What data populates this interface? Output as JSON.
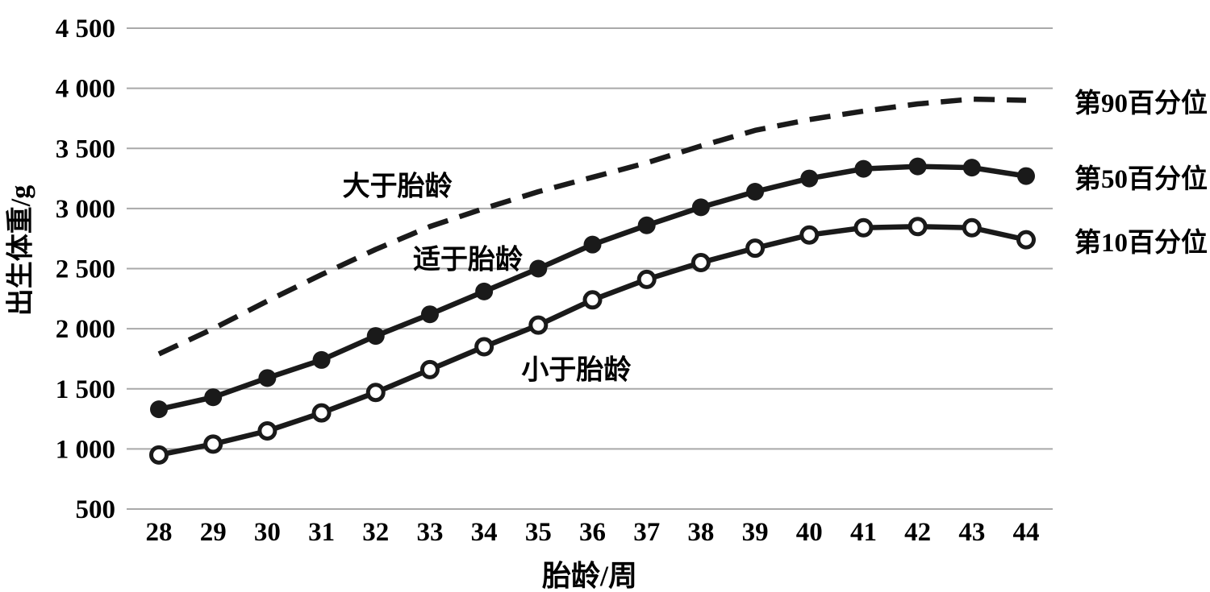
{
  "chart_data": {
    "type": "line",
    "x": [
      28,
      29,
      30,
      31,
      32,
      33,
      34,
      35,
      36,
      37,
      38,
      39,
      40,
      41,
      42,
      43,
      44
    ],
    "xlabel": "胎龄/周",
    "ylabel": "出生体重/g",
    "ylim": [
      500,
      4500
    ],
    "ytick_values": [
      4500,
      4000,
      3500,
      3000,
      2500,
      2000,
      1500,
      1000,
      500
    ],
    "ytick_labels": [
      "4 500",
      "4 000",
      "3 500",
      "3 000",
      "2 500",
      "2 000",
      "1 500",
      "1 000",
      "500"
    ],
    "grid": true,
    "legend_position": "right-of-line-ends",
    "series": [
      {
        "name": "第90百分位",
        "line_style": "dashed",
        "marker": "none",
        "values": [
          1790,
          2000,
          2230,
          2450,
          2660,
          2850,
          3000,
          3140,
          3260,
          3380,
          3520,
          3650,
          3740,
          3810,
          3870,
          3910,
          3900
        ]
      },
      {
        "name": "第50百分位",
        "line_style": "solid",
        "marker": "filled-circle",
        "values": [
          1330,
          1430,
          1590,
          1740,
          1940,
          2120,
          2310,
          2500,
          2700,
          2860,
          3010,
          3140,
          3250,
          3330,
          3350,
          3340,
          3270
        ]
      },
      {
        "name": "第10百分位",
        "line_style": "solid",
        "marker": "open-circle",
        "values": [
          950,
          1040,
          1150,
          1300,
          1470,
          1660,
          1850,
          2030,
          2240,
          2410,
          2550,
          2670,
          2780,
          2840,
          2850,
          2840,
          2740
        ]
      }
    ],
    "annotations": [
      {
        "text": "大于胎龄",
        "week": 32.4,
        "weight": 3210
      },
      {
        "text": "适于胎龄",
        "week": 33.7,
        "weight": 2600
      },
      {
        "text": "小于胎龄",
        "week": 35.7,
        "weight": 1680
      }
    ]
  },
  "colors": {
    "line": "#1a1a1a",
    "grid": "#a9a9a9",
    "text": "#000000",
    "background": "#ffffff"
  }
}
